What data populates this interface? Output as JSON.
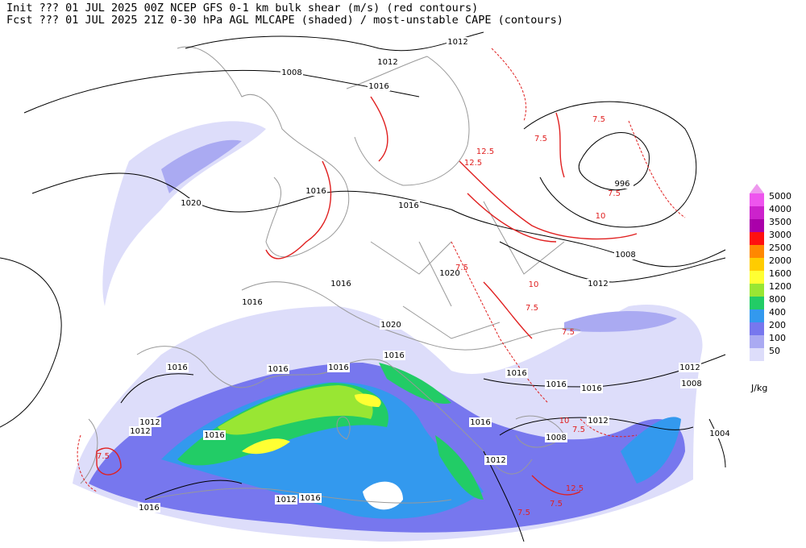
{
  "header": {
    "line1": "Init  ??? 01 JUL 2025 00Z  NCEP GFS 0-1 km bulk shear (m/s) (red contours)",
    "line2": "Fcst ??? 01 JUL 2025 21Z  0-30 hPa AGL MLCAPE (shaded) / most-unstable CAPE (contours)"
  },
  "legend": {
    "levels": [
      {
        "label": "5000",
        "color": "#ee55ee"
      },
      {
        "label": "4000",
        "color": "#cc22cc"
      },
      {
        "label": "3500",
        "color": "#aa00aa"
      },
      {
        "label": "3000",
        "color": "#ff1010"
      },
      {
        "label": "2500",
        "color": "#ff8800"
      },
      {
        "label": "2000",
        "color": "#ffcc00"
      },
      {
        "label": "1600",
        "color": "#ffff33"
      },
      {
        "label": "1200",
        "color": "#99e633"
      },
      {
        "label": "800",
        "color": "#22cc66"
      },
      {
        "label": "400",
        "color": "#3399ee"
      },
      {
        "label": "200",
        "color": "#7777ee"
      },
      {
        "label": "100",
        "color": "#aaaaf2"
      },
      {
        "label": "50",
        "color": "#ddddfa"
      }
    ],
    "top_color": "#ee99ee",
    "unit": "J/kg"
  },
  "pressure_labels": [
    "1012",
    "1008",
    "1012",
    "1016",
    "996",
    "1016",
    "1016",
    "1020",
    "1008",
    "1012",
    "1020",
    "1016",
    "1016",
    "1020",
    "1016",
    "1016",
    "1016",
    "1016",
    "1016",
    "1016",
    "1016",
    "1012",
    "1008",
    "1012",
    "1012",
    "1016",
    "1016",
    "1012",
    "1008",
    "1012",
    "1004",
    "1012",
    "1016",
    "1016"
  ],
  "shear_labels": [
    "7.5",
    "7.5",
    "12.5",
    "12.5",
    "7.5",
    "10",
    "7.5",
    "10",
    "7.5",
    "7.5",
    "12.5",
    "7.5",
    "7.5",
    "7.5",
    "10",
    "7.5"
  ]
}
